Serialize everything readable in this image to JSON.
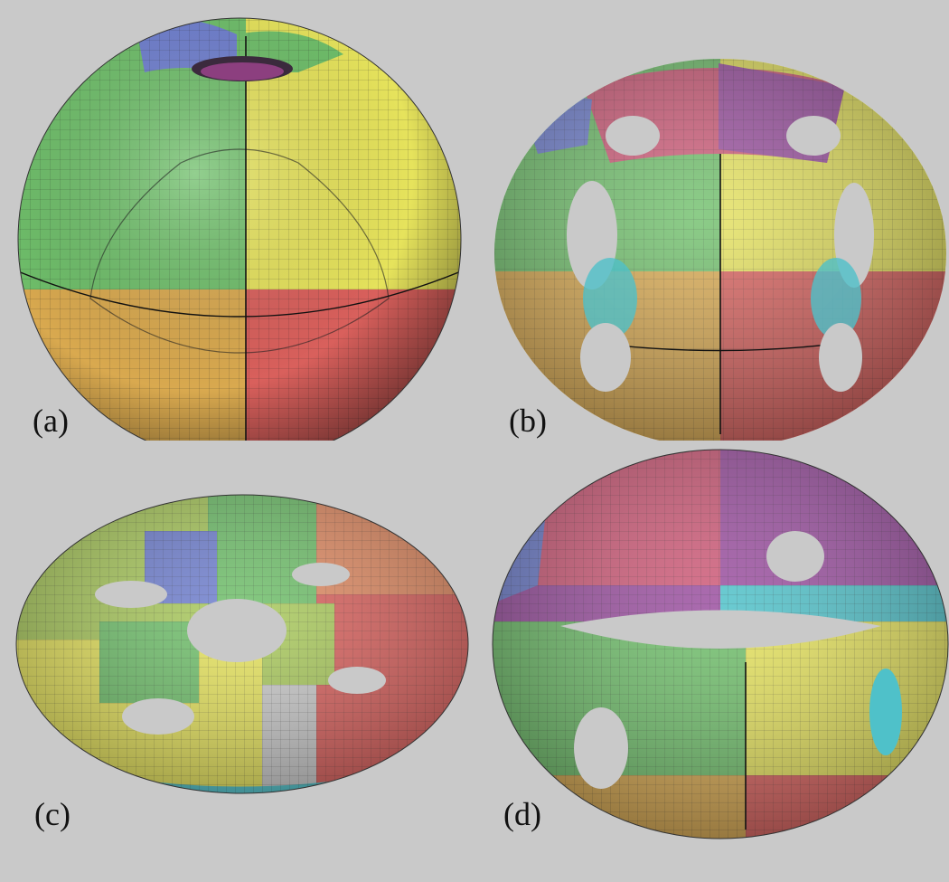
{
  "figure": {
    "background": "#c9c9c9",
    "panels": [
      {
        "id": "a",
        "label": "(a)",
        "object": "sphere-with-handles-mesh"
      },
      {
        "id": "b",
        "label": "(b)",
        "object": "cage-surface-mesh"
      },
      {
        "id": "c",
        "label": "(c)",
        "object": "four-hole-torus-mesh"
      },
      {
        "id": "d",
        "label": "(d)",
        "object": "ring-with-holes-mesh"
      }
    ],
    "patch_colors": {
      "green": "#6fbf6a",
      "yellow": "#e6e35c",
      "orange": "#d9a94f",
      "red": "#d9605c",
      "blue": "#6f7fcf",
      "purple": "#9b4fa0",
      "pink": "#cf5a78",
      "cyan": "#4fc1c9",
      "salmon": "#e08a62"
    }
  }
}
